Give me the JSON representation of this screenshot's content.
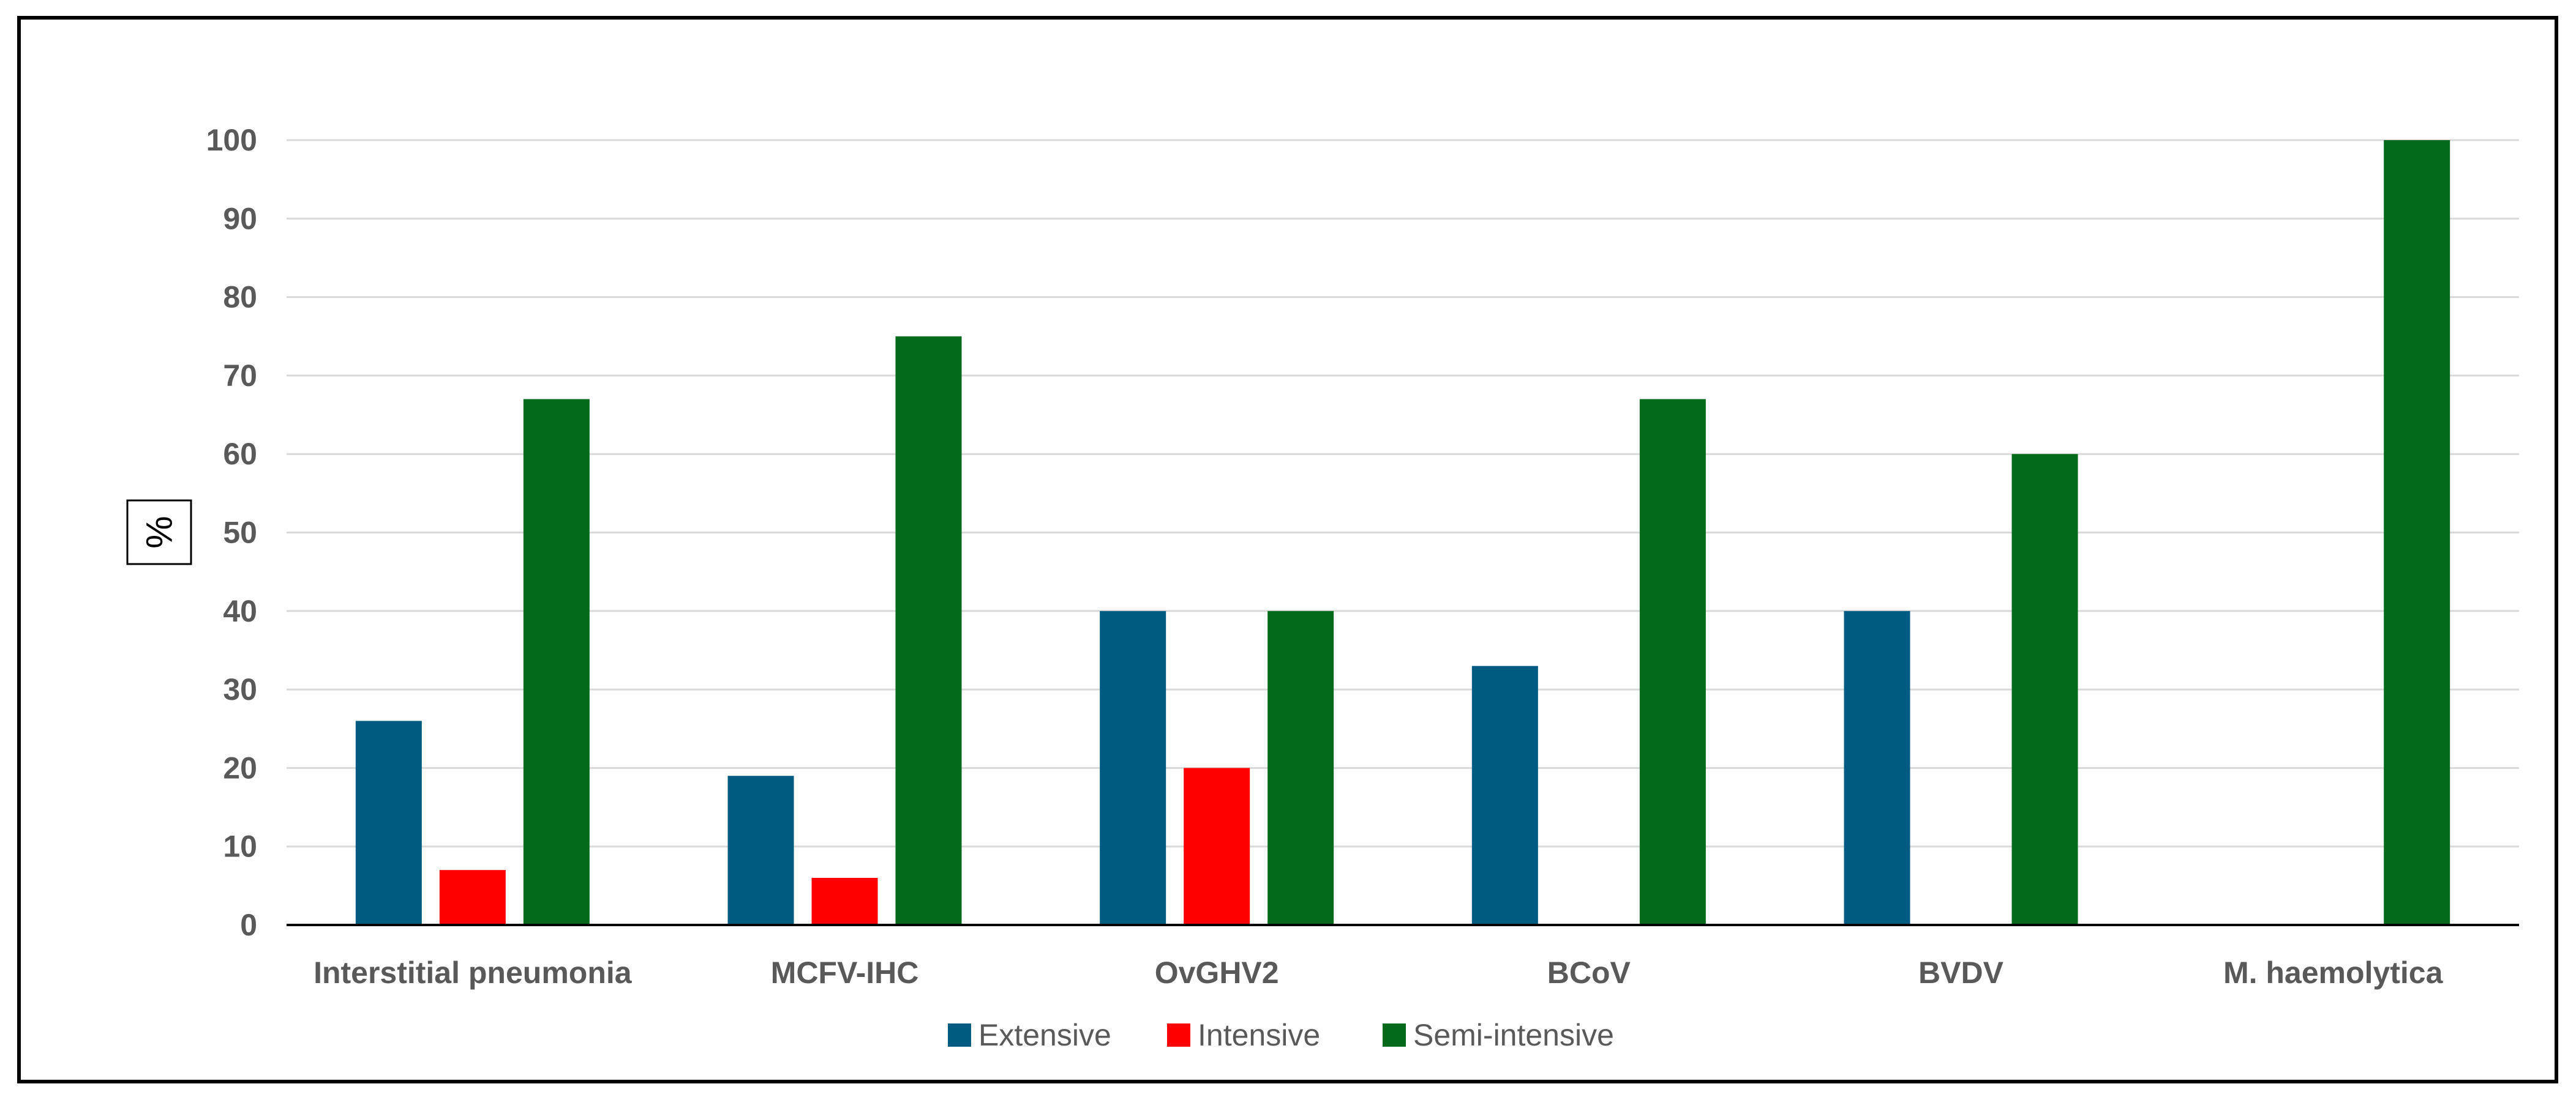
{
  "chart_data": {
    "type": "bar",
    "title": "",
    "xlabel": "",
    "ylabel": "%",
    "ylim": [
      0,
      100
    ],
    "yticks": [
      "0",
      "10",
      "20",
      "30",
      "40",
      "50",
      "60",
      "70",
      "80",
      "90",
      "100"
    ],
    "grid": true,
    "legend_position": "bottom",
    "categories": [
      "Interstitial pneumonia",
      "MCFV-IHC",
      "OvGHV2",
      "BCoV",
      "BVDV",
      "M. haemolytica"
    ],
    "series": [
      {
        "name": "Extensive",
        "color": "#005b82",
        "values": [
          26,
          19,
          40,
          33,
          40,
          0
        ]
      },
      {
        "name": "Intensive",
        "color": "#ff0000",
        "values": [
          7,
          6,
          20,
          0,
          0,
          0
        ]
      },
      {
        "name": "Semi-intensive",
        "color": "#036a1b",
        "values": [
          67,
          75,
          40,
          67,
          60,
          100
        ]
      }
    ]
  }
}
